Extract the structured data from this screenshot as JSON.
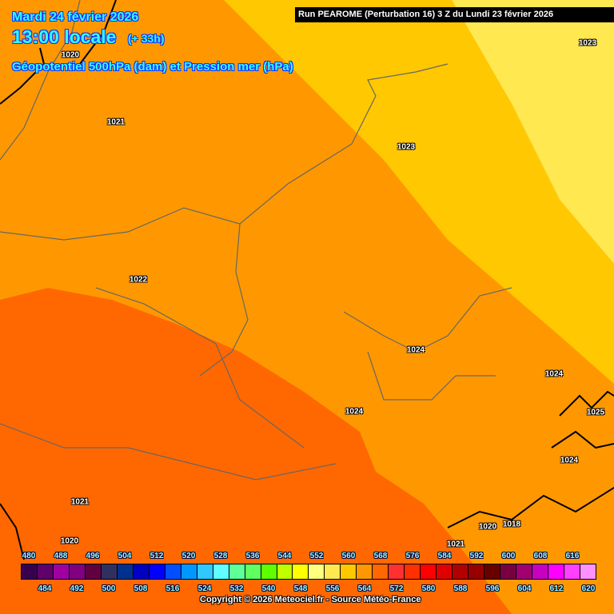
{
  "header": {
    "date": "Mardi 24 février 2026",
    "time": "13:00 locale",
    "lead": "(+ 33h)",
    "parameter": "Géopotentiel 500hPa (dam) et Pression mer (hPa)",
    "run": "Run PEAROME (Perturbation 16) 3 Z du Lundi 23 février 2026"
  },
  "map": {
    "zone_colors": {
      "556": "#ffe850",
      "560": "#ffc800",
      "564": "#ff9800",
      "568": "#ff6800"
    },
    "pressure_labels": [
      "1020",
      "1021",
      "1022",
      "1023",
      "1023",
      "1024",
      "1024",
      "1024",
      "1025",
      "1024",
      "1021",
      "1020",
      "1020",
      "1018",
      "1021"
    ]
  },
  "legend": {
    "values": [
      480,
      484,
      488,
      492,
      496,
      500,
      504,
      508,
      512,
      516,
      520,
      524,
      528,
      532,
      536,
      540,
      544,
      548,
      552,
      556,
      560,
      564,
      568,
      572,
      576,
      580,
      584,
      588,
      592,
      596,
      600,
      604,
      608,
      612,
      616,
      620
    ],
    "colors": [
      "#3a0050",
      "#60006a",
      "#a000a0",
      "#800080",
      "#600040",
      "#303060",
      "#003090",
      "#0000c0",
      "#0000ff",
      "#0050ff",
      "#0098ff",
      "#30c8ff",
      "#60ffff",
      "#60ff98",
      "#60ff60",
      "#60ff00",
      "#c0ff00",
      "#ffff00",
      "#ffff80",
      "#ffe850",
      "#ffc800",
      "#ff9800",
      "#ff6800",
      "#ff3030",
      "#ff3000",
      "#ff0000",
      "#e00000",
      "#b00000",
      "#980000",
      "#680000",
      "#780040",
      "#a00070",
      "#c800c0",
      "#ff00ff",
      "#ff40ff",
      "#ff90ff"
    ]
  },
  "copyright": "Copyright © 2026 Meteociel.fr - Source Météo-France"
}
